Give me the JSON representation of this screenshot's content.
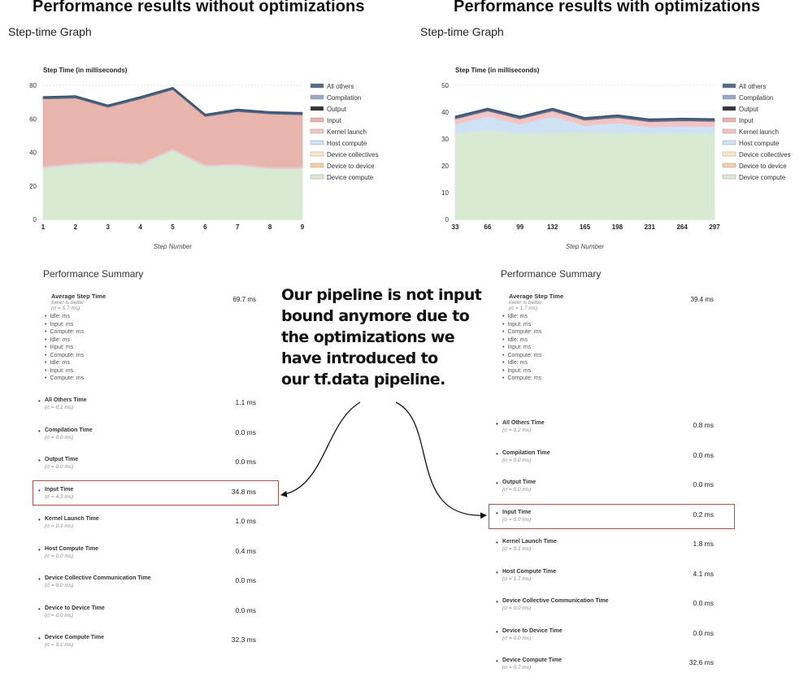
{
  "left": {
    "heading": "Performance results without optimizations",
    "subheading": "Step-time Graph",
    "chart_title": "Step Time (in milliseconds)",
    "xlabel": "Step Number",
    "summary_title": "Performance Summary",
    "avg": {
      "label": "Average Step Time",
      "hint": "lower is better",
      "sigma": "(σ = 5.7 ms)",
      "value": "69.7 ms"
    },
    "breakdown": [
      "Idle: ms",
      "Input: ms",
      "Compute: ms",
      "Idle: ms",
      "Input: ms",
      "Compute: ms",
      "Idle: ms",
      "Input: ms",
      "Compute: ms"
    ],
    "metrics": [
      {
        "label": "All Others Time",
        "sigma": "(σ = 0.1 ms)",
        "value": "1.1 ms"
      },
      {
        "label": "Compilation Time",
        "sigma": "(σ = 0.0 ms)",
        "value": "0.0 ms"
      },
      {
        "label": "Output Time",
        "sigma": "(σ = 0.0 ms)",
        "value": "0.0 ms"
      },
      {
        "label": "Input Time",
        "sigma": "(σ = 4.3 ms)",
        "value": "34.8 ms"
      },
      {
        "label": "Kernel Launch Time",
        "sigma": "(σ = 0.1 ms)",
        "value": "1.0 ms"
      },
      {
        "label": "Host Compute Time",
        "sigma": "(σ = 0.0 ms)",
        "value": "0.4 ms"
      },
      {
        "label": "Device Collective Communication Time",
        "sigma": "(σ = 0.0 ms)",
        "value": "0.0 ms"
      },
      {
        "label": "Device to Device Time",
        "sigma": "(σ = 0.0 ms)",
        "value": "0.0 ms"
      },
      {
        "label": "Device Compute Time",
        "sigma": "(σ = 3.1 ms)",
        "value": "32.3 ms"
      }
    ]
  },
  "right": {
    "heading": "Performance results with optimizations",
    "subheading": "Step-time Graph",
    "chart_title": "Step Time (in milliseconds)",
    "xlabel": "Step Number",
    "summary_title": "Performance Summary",
    "avg": {
      "label": "Average Step Time",
      "hint": "lower is better",
      "sigma": "(σ = 1.7 ms)",
      "value": "39.4 ms"
    },
    "breakdown": [
      "Idle: ms",
      "Input: ms",
      "Compute: ms",
      "Idle: ms",
      "Input: ms",
      "Compute: ms",
      "Idle: ms",
      "Input: ms",
      "Compute: ms"
    ],
    "metrics": [
      {
        "label": "All Others Time",
        "sigma": "(σ = 0.2 ms)",
        "value": "0.8 ms"
      },
      {
        "label": "Compilation Time",
        "sigma": "(σ = 0.0 ms)",
        "value": "0.0 ms"
      },
      {
        "label": "Output Time",
        "sigma": "(σ = 0.0 ms)",
        "value": "0.0 ms"
      },
      {
        "label": "Input Time",
        "sigma": "(σ = 0.0 ms)",
        "value": "0.2 ms"
      },
      {
        "label": "Kernel Launch Time",
        "sigma": "(σ = 0.1 ms)",
        "value": "1.8 ms"
      },
      {
        "label": "Host Compute Time",
        "sigma": "(σ = 1.7 ms)",
        "value": "4.1 ms"
      },
      {
        "label": "Device Collective Communication Time",
        "sigma": "(σ = 0.0 ms)",
        "value": "0.0 ms"
      },
      {
        "label": "Device to Device Time",
        "sigma": "(σ = 0.0 ms)",
        "value": "0.0 ms"
      },
      {
        "label": "Device Compute Time",
        "sigma": "(σ = 0.7 ms)",
        "value": "32.6 ms"
      }
    ]
  },
  "callout": [
    "Our pipeline is not input",
    "bound anymore due to",
    "the optimizations we",
    "have introduced to",
    "our tf.data pipeline."
  ],
  "colors": {
    "device_compute": "#d9ead3",
    "input": "#e8b5ac",
    "host_compute": "#cfe2f3",
    "highlight_box": "#a8534c"
  },
  "chart_data": [
    {
      "type": "area",
      "stacked": true,
      "title": "Step Time (in milliseconds)",
      "xlabel": "Step Number",
      "ylabel": "",
      "x": [
        1,
        2,
        3,
        4,
        5,
        6,
        7,
        8,
        9
      ],
      "ylim": [
        0,
        80
      ],
      "yticks": [
        0,
        20,
        40,
        60,
        80
      ],
      "grid": true,
      "legend": "right",
      "series": [
        {
          "name": "Device compute",
          "color": "#d9ead3",
          "values": [
            30.5,
            32.5,
            33.5,
            32.5,
            41,
            31.5,
            32,
            30,
            30
          ]
        },
        {
          "name": "Device to device",
          "color": "#f6cfa9",
          "values": [
            0,
            0,
            0,
            0,
            0,
            0,
            0,
            0,
            0
          ]
        },
        {
          "name": "Device collectives",
          "color": "#fde9c8",
          "values": [
            0,
            0,
            0,
            0,
            0,
            0,
            0,
            0,
            0
          ]
        },
        {
          "name": "Host compute",
          "color": "#cfe2f3",
          "values": [
            0.4,
            0.4,
            0.4,
            0.4,
            0.4,
            0.4,
            0.4,
            0.4,
            0.4
          ]
        },
        {
          "name": "Kernel launch",
          "color": "#f2c4c4",
          "values": [
            1,
            1,
            1,
            1,
            1,
            1,
            1,
            1,
            1
          ]
        },
        {
          "name": "Input",
          "color": "#e8b5ac",
          "values": [
            40,
            38.5,
            32,
            38,
            35,
            28.5,
            31,
            31.5,
            31
          ]
        },
        {
          "name": "Output",
          "color": "#333333",
          "values": [
            0,
            0,
            0,
            0,
            0,
            0,
            0,
            0,
            0
          ]
        },
        {
          "name": "Compilation",
          "color": "#9aa9c2",
          "values": [
            0,
            0,
            0,
            0,
            0,
            0,
            0,
            0,
            0
          ]
        },
        {
          "name": "All others",
          "color": "#556b8a",
          "values": [
            1.1,
            1.1,
            1.1,
            1.1,
            1.1,
            1.1,
            1.1,
            1.1,
            1.1
          ]
        }
      ]
    },
    {
      "type": "area",
      "stacked": true,
      "title": "Step Time (in milliseconds)",
      "xlabel": "Step Number",
      "ylabel": "",
      "x": [
        33,
        66,
        99,
        132,
        165,
        198,
        231,
        264,
        297
      ],
      "ylim": [
        0,
        50
      ],
      "yticks": [
        0,
        10,
        20,
        30,
        40,
        50
      ],
      "grid": true,
      "legend": "right",
      "series": [
        {
          "name": "Device compute",
          "color": "#d9ead3",
          "values": [
            32,
            33.5,
            32,
            32.5,
            32.5,
            32,
            32,
            32,
            32
          ]
        },
        {
          "name": "Device to device",
          "color": "#f6cfa9",
          "values": [
            0,
            0,
            0,
            0,
            0,
            0,
            0,
            0,
            0
          ]
        },
        {
          "name": "Device collectives",
          "color": "#fde9c8",
          "values": [
            0,
            0,
            0,
            0,
            0,
            0,
            0,
            0,
            0
          ]
        },
        {
          "name": "Host compute",
          "color": "#cfe2f3",
          "values": [
            3.5,
            5,
            3.5,
            6,
            2.5,
            4,
            2.5,
            2.8,
            2.6
          ]
        },
        {
          "name": "Kernel launch",
          "color": "#f2c4c4",
          "values": [
            1.8,
            1.8,
            1.8,
            1.8,
            1.8,
            1.8,
            1.8,
            1.8,
            1.8
          ]
        },
        {
          "name": "Input",
          "color": "#e8b5ac",
          "values": [
            0.2,
            0.2,
            0.2,
            0.2,
            0.2,
            0.2,
            0.2,
            0.2,
            0.2
          ]
        },
        {
          "name": "Output",
          "color": "#333333",
          "values": [
            0,
            0,
            0,
            0,
            0,
            0,
            0,
            0,
            0
          ]
        },
        {
          "name": "Compilation",
          "color": "#9aa9c2",
          "values": [
            0,
            0,
            0,
            0,
            0,
            0,
            0,
            0,
            0
          ]
        },
        {
          "name": "All others",
          "color": "#556b8a",
          "values": [
            0.8,
            0.8,
            0.8,
            0.8,
            0.8,
            0.8,
            0.8,
            0.8,
            0.8
          ]
        }
      ]
    }
  ]
}
